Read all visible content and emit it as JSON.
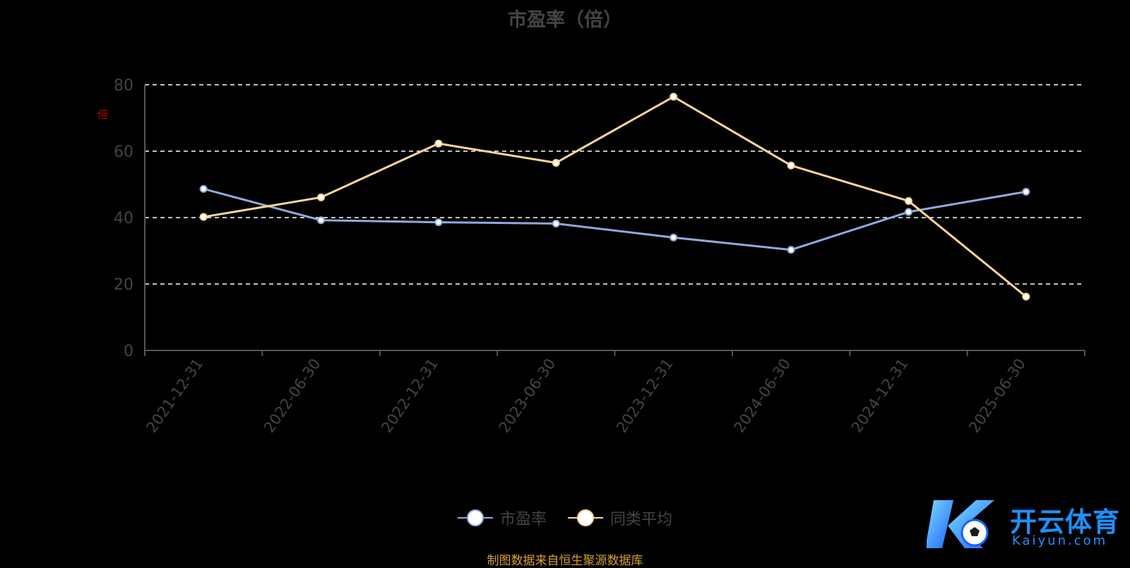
{
  "chart_data": {
    "type": "line",
    "title": "市盈率（倍）",
    "ylabel": "倍",
    "ylim": [
      0,
      80
    ],
    "yticks": [
      0,
      20,
      40,
      60,
      80
    ],
    "grid": true,
    "legend_position": "bottom-center",
    "categories": [
      "2021-12-31",
      "2022-06-30",
      "2022-12-31",
      "2023-06-30",
      "2023-12-31",
      "2024-06-30",
      "2024-12-31",
      "2025-06-30"
    ],
    "series": [
      {
        "name": "市盈率",
        "color": "#8faadc",
        "values": [
          48.65,
          39.2,
          38.6,
          38.2,
          34.0,
          30.3,
          41.7,
          47.8
        ]
      },
      {
        "name": "同类平均",
        "color": "#ffd696",
        "values": [
          40.2,
          46.1,
          62.3,
          56.5,
          76.4,
          55.7,
          45.0,
          16.2
        ]
      }
    ]
  },
  "footer": {
    "source": "制图数据来自恒生聚源数据库",
    "watermark_text": "开云体育",
    "watermark_url": "Kaiyun.com"
  },
  "colors": {
    "background": "#000000",
    "grid": "#ffffff",
    "axis": "#555555",
    "tick_text": "#444444",
    "source_text": "#d6a02c",
    "unit_text": "#c00000"
  }
}
